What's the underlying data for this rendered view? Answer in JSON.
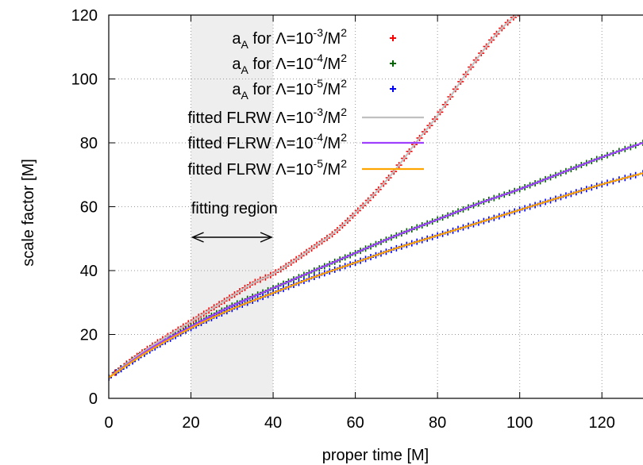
{
  "chart_data": {
    "type": "line",
    "xlabel": "proper time [M]",
    "ylabel": "scale factor [M]",
    "xlim": [
      0,
      130
    ],
    "ylim": [
      0,
      120
    ],
    "xticks": [
      0,
      20,
      40,
      60,
      80,
      100,
      120
    ],
    "yticks": [
      0,
      20,
      40,
      60,
      80,
      100,
      120
    ],
    "grid": true,
    "legend_position": "top-left",
    "shaded_region": {
      "x": [
        20,
        40
      ],
      "label": "fitting region",
      "color": "#eeeeee"
    },
    "series": [
      {
        "name": "a_A for Λ=10^-3/M^2",
        "legend": {
          "main": "a",
          "sub": "A",
          "mid": " for Λ=10",
          "sup": "-3",
          "tail": "/M",
          "sup2": "2"
        },
        "style": "points",
        "marker": "+",
        "color": "#ff0000",
        "x": [
          0,
          5,
          10,
          15,
          20,
          25,
          30,
          35,
          40,
          45,
          50,
          55,
          60,
          65,
          70,
          75,
          80,
          85,
          90,
          95,
          100
        ],
        "y": [
          6.5,
          11.5,
          16,
          20,
          24,
          28,
          32,
          36,
          39,
          43,
          47.5,
          52,
          58,
          64.5,
          72,
          80.5,
          88.5,
          98,
          107,
          115,
          121
        ]
      },
      {
        "name": "a_A for Λ=10^-4/M^2",
        "legend": {
          "main": "a",
          "sub": "A",
          "mid": " for Λ=10",
          "sup": "-4",
          "tail": "/M",
          "sup2": "2"
        },
        "style": "points",
        "marker": "+",
        "color": "#006400",
        "x": [
          0,
          10,
          20,
          30,
          40,
          50,
          60,
          70,
          80,
          90,
          100,
          110,
          120,
          130
        ],
        "y": [
          6.5,
          15.5,
          22.5,
          29,
          34.5,
          40,
          45.5,
          51,
          56,
          61,
          65.5,
          70.5,
          75.5,
          80
        ]
      },
      {
        "name": "a_A for Λ=10^-5/M^2",
        "legend": {
          "main": "a",
          "sub": "A",
          "mid": " for Λ=10",
          "sup": "-5",
          "tail": "/M",
          "sup2": "2"
        },
        "style": "points",
        "marker": "+",
        "color": "#0000ff",
        "x": [
          0,
          10,
          20,
          30,
          40,
          50,
          60,
          70,
          80,
          90,
          100,
          110,
          120,
          130
        ],
        "y": [
          6.5,
          15,
          22,
          28,
          33,
          38,
          42.5,
          47,
          51,
          55,
          59,
          63,
          67,
          70.5
        ]
      },
      {
        "name": "fitted FLRW Λ=10^-3/M^2",
        "legend": {
          "main": "fitted FLRW Λ=10",
          "sup": "-3",
          "tail": "/M",
          "sup2": "2"
        },
        "style": "line",
        "color": "#c0c0c0",
        "x": [
          0,
          5,
          10,
          15,
          20,
          25,
          30,
          35,
          40,
          45,
          50,
          55,
          60,
          65,
          70,
          75,
          80,
          85,
          90,
          95,
          100
        ],
        "y": [
          6.5,
          11.5,
          16,
          20,
          24,
          28,
          32,
          36,
          39,
          43,
          47.5,
          52,
          58,
          64.5,
          72,
          80.5,
          88.5,
          98,
          107,
          115,
          121
        ]
      },
      {
        "name": "fitted FLRW Λ=10^-4/M^2",
        "legend": {
          "main": "fitted FLRW Λ=10",
          "sup": "-4",
          "tail": "/M",
          "sup2": "2"
        },
        "style": "line",
        "color": "#a040ff",
        "x": [
          0,
          10,
          20,
          30,
          40,
          50,
          60,
          70,
          80,
          90,
          100,
          110,
          120,
          130
        ],
        "y": [
          6.5,
          15.5,
          22.5,
          29,
          34.5,
          40,
          45.5,
          51,
          56,
          61,
          65.5,
          70.5,
          75.5,
          80
        ]
      },
      {
        "name": "fitted FLRW Λ=10^-5/M^2",
        "legend": {
          "main": "fitted FLRW Λ=10",
          "sup": "-5",
          "tail": "/M",
          "sup2": "2"
        },
        "style": "line",
        "color": "#ffa500",
        "x": [
          0,
          10,
          20,
          30,
          40,
          50,
          60,
          70,
          80,
          90,
          100,
          110,
          120,
          130
        ],
        "y": [
          6.5,
          15,
          22,
          28,
          33,
          38,
          42.5,
          47,
          51,
          55,
          59,
          63,
          67,
          70.5
        ]
      }
    ]
  }
}
